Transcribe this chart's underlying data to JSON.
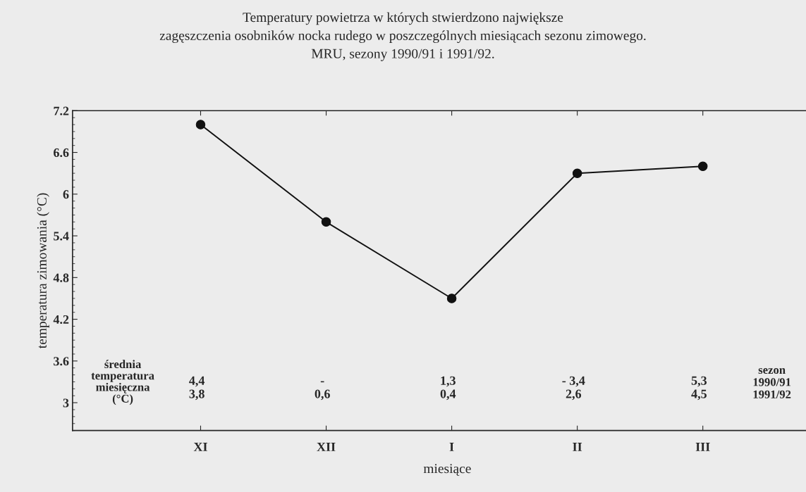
{
  "chart_data": {
    "type": "line",
    "title": "Temperatury powietrza w których stwierdzono największe\nzagęszczenia osobników nocka rudego w poszczególnych miesiącach sezonu zimowego.\nMRU, sezony 1990/91 i 1991/92.",
    "xlabel": "miesiące",
    "ylabel": "temperatura zimowania (°C)",
    "categories": [
      "XI",
      "XII",
      "I",
      "II",
      "III"
    ],
    "series": [
      {
        "color": "#111111",
        "values": [
          7.0,
          5.6,
          4.5,
          6.3,
          6.4
        ]
      }
    ],
    "ylim": [
      2.6,
      7.2
    ],
    "yticks": [
      3,
      3.6,
      4.2,
      4.8,
      5.4,
      6,
      6.6,
      7.2
    ],
    "marker": "circle",
    "line_style": "solid",
    "grid": false,
    "legend": false,
    "annotations": [
      "średnia\ntemperatura\nmiesięczna\n(°C)",
      "4,4\n3,8",
      "-\n0,6",
      "1,3\n0,4",
      "- 3,4\n2,6",
      "5,3\n4,5",
      "sezon\n1990/91\n1991/92"
    ]
  }
}
